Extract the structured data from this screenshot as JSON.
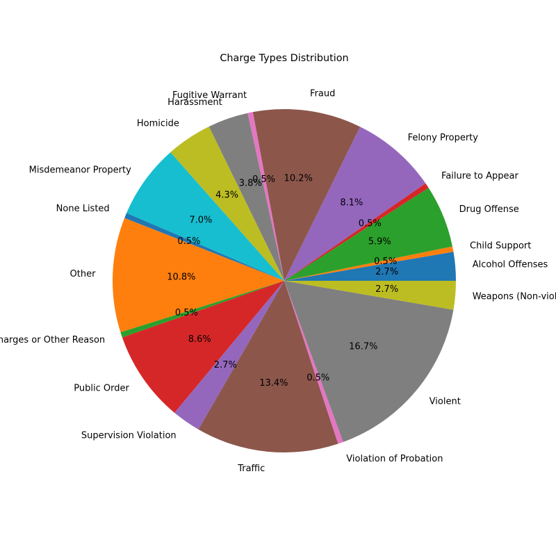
{
  "chart_data": {
    "type": "pie",
    "title": "Charge Types Distribution",
    "start_angle_deg": 0,
    "direction": "counterclockwise",
    "slices": [
      {
        "label": "Alcohol Offenses",
        "value": 2.7,
        "pct_label": "2.7%",
        "color": "#1f77b4"
      },
      {
        "label": "Child Support",
        "value": 0.5,
        "pct_label": "0.5%",
        "color": "#ff7f0e"
      },
      {
        "label": "Drug Offense",
        "value": 5.9,
        "pct_label": "5.9%",
        "color": "#2ca02c"
      },
      {
        "label": "Failure to Appear",
        "value": 0.5,
        "pct_label": "0.5%",
        "color": "#d62728"
      },
      {
        "label": "Felony Property",
        "value": 8.1,
        "pct_label": "8.1%",
        "color": "#9467bd"
      },
      {
        "label": "Fraud",
        "value": 10.2,
        "pct_label": "10.2%",
        "color": "#8c564b"
      },
      {
        "label": "Fugitive Warrant",
        "value": 0.5,
        "pct_label": "0.5%",
        "color": "#e377c2"
      },
      {
        "label": "Harassment",
        "value": 3.8,
        "pct_label": "3.8%",
        "color": "#7f7f7f"
      },
      {
        "label": "Homicide",
        "value": 4.3,
        "pct_label": "4.3%",
        "color": "#bcbd22"
      },
      {
        "label": "Misdemeanor Property",
        "value": 7.0,
        "pct_label": "7.0%",
        "color": "#17becf"
      },
      {
        "label": "None Listed",
        "value": 0.5,
        "pct_label": "0.5%",
        "color": "#1f77b4"
      },
      {
        "label": "Other",
        "value": 10.8,
        "pct_label": "10.8%",
        "color": "#ff7f0e"
      },
      {
        "label": "Pending Charges or Other Reason",
        "value": 0.5,
        "pct_label": "0.5%",
        "color": "#2ca02c"
      },
      {
        "label": "Public Order",
        "value": 8.6,
        "pct_label": "8.6%",
        "color": "#d62728"
      },
      {
        "label": "Supervision Violation",
        "value": 2.7,
        "pct_label": "2.7%",
        "color": "#9467bd"
      },
      {
        "label": "Traffic",
        "value": 13.4,
        "pct_label": "13.4%",
        "color": "#8c564b"
      },
      {
        "label": "Violation of Probation",
        "value": 0.5,
        "pct_label": "0.5%",
        "color": "#e377c2"
      },
      {
        "label": "Violent",
        "value": 16.7,
        "pct_label": "16.7%",
        "color": "#7f7f7f"
      },
      {
        "label": "Weapons (Non-violent)",
        "value": 2.7,
        "pct_label": "2.7%",
        "color": "#bcbd22"
      }
    ]
  }
}
